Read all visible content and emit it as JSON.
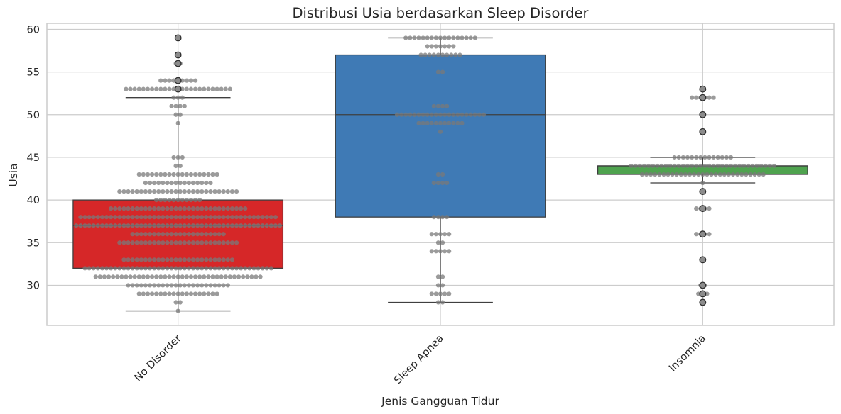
{
  "chart_data": {
    "type": "box",
    "title": "Distribusi Usia berdasarkan Sleep Disorder",
    "xlabel": "Jenis Gangguan Tidur",
    "ylabel": "Usia",
    "ylim": [
      25.3,
      60.7
    ],
    "yticks": [
      30,
      35,
      40,
      45,
      50,
      55,
      60
    ],
    "grid": true,
    "overlay": "swarm",
    "categories": [
      "No Disorder",
      "Sleep Apnea",
      "Insomnia"
    ],
    "boxes": [
      {
        "category": "No Disorder",
        "color": "#d62728",
        "whisker_low": 27,
        "q1": 32,
        "median": 37,
        "q3": 40,
        "whisker_high": 52,
        "fliers": [
          53,
          54,
          56,
          57,
          59
        ],
        "swarm": [
          [
            27,
            1
          ],
          [
            28,
            2
          ],
          [
            29,
            19
          ],
          [
            30,
            24
          ],
          [
            31,
            39
          ],
          [
            32,
            44
          ],
          [
            33,
            26
          ],
          [
            35,
            28
          ],
          [
            36,
            22
          ],
          [
            37,
            48
          ],
          [
            38,
            46
          ],
          [
            39,
            32
          ],
          [
            40,
            11
          ],
          [
            41,
            28
          ],
          [
            42,
            16
          ],
          [
            43,
            19
          ],
          [
            44,
            2
          ],
          [
            45,
            3
          ],
          [
            49,
            1
          ],
          [
            50,
            2
          ],
          [
            51,
            4
          ],
          [
            52,
            3
          ],
          [
            53,
            25
          ],
          [
            54,
            9
          ],
          [
            56,
            2
          ],
          [
            57,
            1
          ],
          [
            59,
            1
          ]
        ]
      },
      {
        "category": "Sleep Apnea",
        "color": "#3f7ab5",
        "whisker_low": 28,
        "q1": 38,
        "median": 50,
        "q3": 57,
        "whisker_high": 59,
        "fliers": [],
        "swarm": [
          [
            28,
            2
          ],
          [
            29,
            5
          ],
          [
            30,
            2
          ],
          [
            31,
            2
          ],
          [
            34,
            5
          ],
          [
            35,
            2
          ],
          [
            36,
            5
          ],
          [
            38,
            4
          ],
          [
            42,
            4
          ],
          [
            43,
            2
          ],
          [
            48,
            1
          ],
          [
            49,
            11
          ],
          [
            50,
            21
          ],
          [
            51,
            4
          ],
          [
            55,
            2
          ],
          [
            57,
            10
          ],
          [
            58,
            7
          ],
          [
            59,
            17
          ]
        ]
      },
      {
        "category": "Insomnia",
        "color": "#4fa34f",
        "whisker_low": 42,
        "q1": 43,
        "median": 44,
        "q3": 44,
        "whisker_high": 45,
        "fliers": [
          28,
          29,
          30,
          33,
          36,
          39,
          41,
          48,
          50,
          52,
          53
        ],
        "swarm": [
          [
            28,
            1
          ],
          [
            29,
            3
          ],
          [
            30,
            2
          ],
          [
            33,
            1
          ],
          [
            36,
            4
          ],
          [
            39,
            4
          ],
          [
            41,
            1
          ],
          [
            42,
            1
          ],
          [
            43,
            29
          ],
          [
            44,
            34
          ],
          [
            45,
            14
          ],
          [
            48,
            1
          ],
          [
            50,
            1
          ],
          [
            52,
            6
          ],
          [
            53,
            1
          ]
        ]
      }
    ]
  }
}
